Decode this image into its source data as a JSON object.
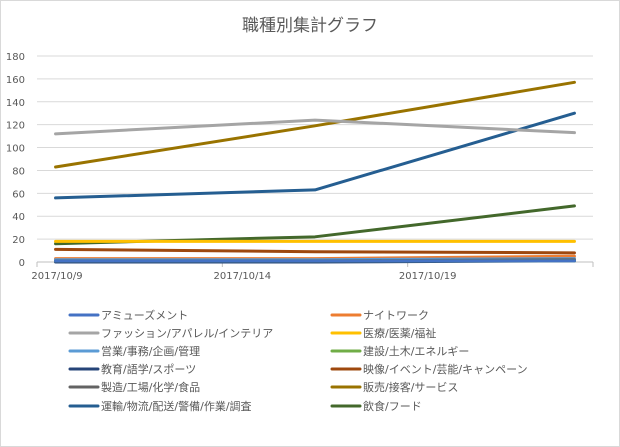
{
  "chart_data": {
    "type": "line",
    "title": "職種別集計グラフ",
    "xlabel": "",
    "ylabel": "",
    "x": [
      "2017/10/9",
      "2017/10/16",
      "2017/10/23"
    ],
    "x_ticks": [
      "2017/10/9",
      "2017/10/14",
      "2017/10/19"
    ],
    "xlim": [
      "2017/10/9",
      "2017/10/24"
    ],
    "ylim": [
      0,
      180
    ],
    "y_ticks": [
      0,
      20,
      40,
      60,
      80,
      100,
      120,
      140,
      160,
      180
    ],
    "grid": true,
    "legend_placement": "bottom",
    "series": [
      {
        "name": "アミューズメント",
        "color": "#4472C4",
        "values": [
          1,
          1,
          1
        ]
      },
      {
        "name": "ナイトワーク",
        "color": "#ED7D31",
        "values": [
          3,
          3,
          5
        ]
      },
      {
        "name": "ファッション/アパレル/インテリア",
        "color": "#A5A5A5",
        "values": [
          112,
          124,
          113
        ]
      },
      {
        "name": "医療/医薬/福祉",
        "color": "#FFC000",
        "values": [
          18,
          18,
          18
        ]
      },
      {
        "name": "営業/事務/企画/管理",
        "color": "#5B9BD5",
        "values": [
          2,
          2,
          3
        ]
      },
      {
        "name": "建設/土木/エネルギー",
        "color": "#70AD47",
        "values": [
          1,
          1,
          1
        ]
      },
      {
        "name": "教育/語学/スポーツ",
        "color": "#264478",
        "values": [
          0,
          0,
          1
        ]
      },
      {
        "name": "映像/イベント/芸能/キャンペーン",
        "color": "#9E480E",
        "values": [
          11,
          9,
          8
        ]
      },
      {
        "name": "製造/工場/化学/食品",
        "color": "#636363",
        "values": [
          1,
          1,
          2
        ]
      },
      {
        "name": "販売/接客/サービス",
        "color": "#997300",
        "values": [
          83,
          119,
          157
        ]
      },
      {
        "name": "運輸/物流/配送/警備/作業/調査",
        "color": "#255E91",
        "values": [
          56,
          63,
          130
        ]
      },
      {
        "name": "飲食/フード",
        "color": "#43682B",
        "values": [
          16,
          22,
          49
        ]
      }
    ]
  }
}
